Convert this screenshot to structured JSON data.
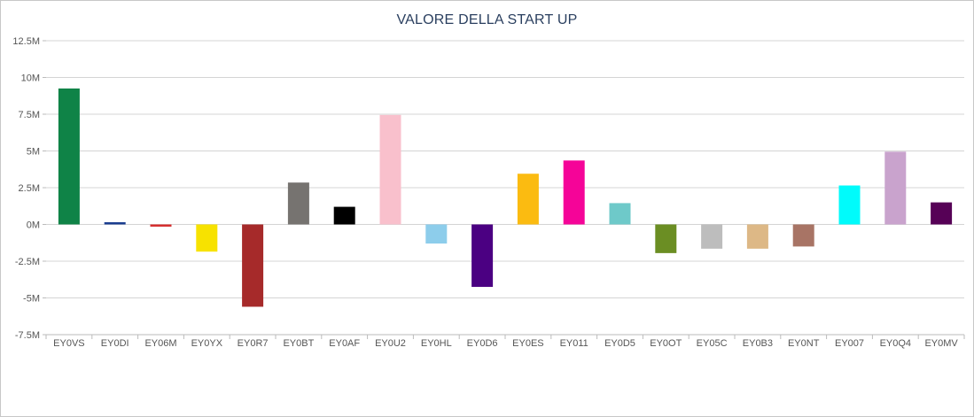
{
  "chart_data": {
    "type": "bar",
    "title": "VALORE DELLA START UP",
    "xlabel": "",
    "ylabel": "",
    "ylim": [
      -7500000,
      12500000
    ],
    "y_ticks": [
      {
        "value": 12500000,
        "label": "12.5M"
      },
      {
        "value": 10000000,
        "label": "10M"
      },
      {
        "value": 7500000,
        "label": "7.5M"
      },
      {
        "value": 5000000,
        "label": "5M"
      },
      {
        "value": 2500000,
        "label": "2.5M"
      },
      {
        "value": 0,
        "label": "0M"
      },
      {
        "value": -2500000,
        "label": "-2.5M"
      },
      {
        "value": -5000000,
        "label": "-5M"
      },
      {
        "value": -7500000,
        "label": "-7.5M"
      }
    ],
    "grid": true,
    "legend": "none",
    "categories": [
      "EY0VS",
      "EY0DI",
      "EY06M",
      "EY0YX",
      "EY0R7",
      "EY0BT",
      "EY0AF",
      "EY0U2",
      "EY0HL",
      "EY0D6",
      "EY0ES",
      "EY011",
      "EY0D5",
      "EY0OT",
      "EY05C",
      "EY0B3",
      "EY0NT",
      "EY007",
      "EY0Q4",
      "EY0MV"
    ],
    "values": [
      9250000,
      150000,
      -150000,
      -1850000,
      -5600000,
      2850000,
      1200000,
      7450000,
      -1300000,
      -4250000,
      3450000,
      4350000,
      1450000,
      -1950000,
      -1650000,
      -1650000,
      -1500000,
      2650000,
      4950000,
      1500000
    ],
    "colors": [
      "#0f8347",
      "#1a3d8f",
      "#d62f2f",
      "#f7e200",
      "#a62a2a",
      "#767370",
      "#000000",
      "#f9c0cc",
      "#8dcdeb",
      "#4b0082",
      "#fbbb11",
      "#f50498",
      "#6ec9c9",
      "#6b8e23",
      "#bdbdbd",
      "#ddb886",
      "#a87465",
      "#00fbfb",
      "#c9a3cd",
      "#560156"
    ]
  }
}
